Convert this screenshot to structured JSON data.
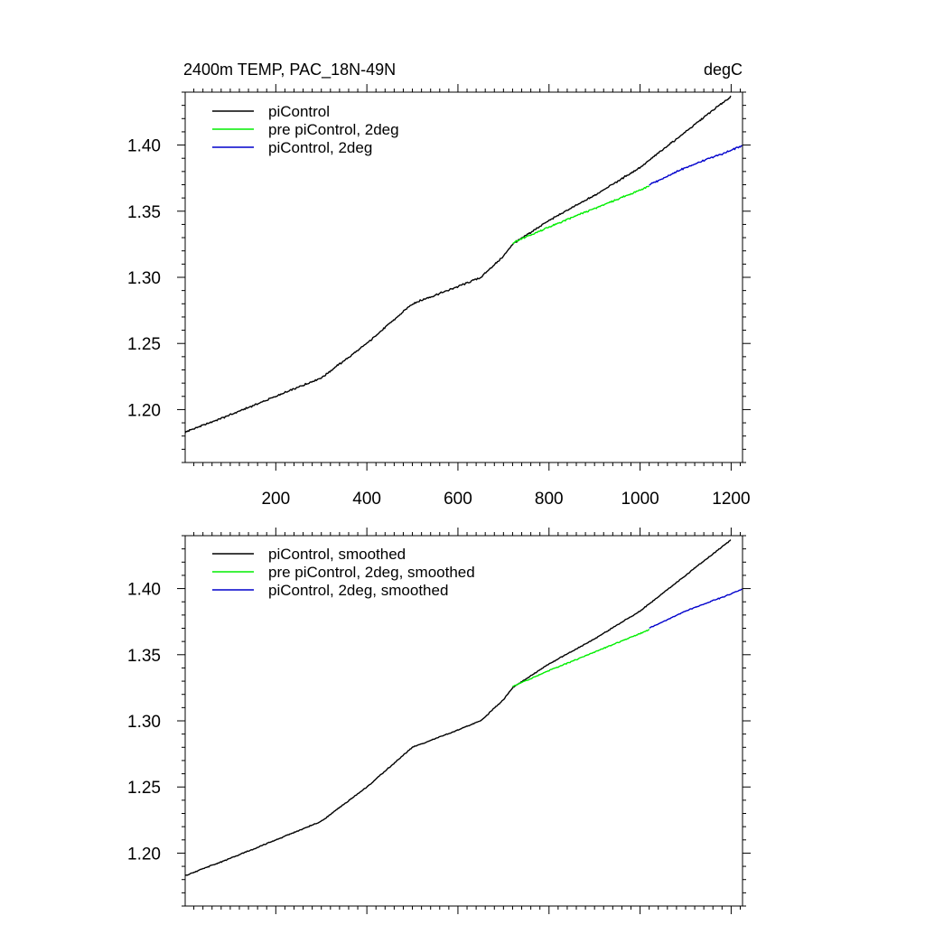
{
  "figure_title": "2400m TEMP, PAC_18N-49N",
  "figure_units": "degC",
  "colors": {
    "piControl": "#000000",
    "pre_piControl_2deg": "#00ee00",
    "piControl_2deg": "#0000cc"
  },
  "chart_data": [
    {
      "type": "line",
      "title": "2400m TEMP, PAC_18N-49N",
      "units": "degC",
      "xlim": [
        1,
        1225
      ],
      "ylim": [
        1.16,
        1.44
      ],
      "x_ticks": [
        200,
        400,
        600,
        800,
        1000,
        1200
      ],
      "x_tick_labels": [
        "200",
        "400",
        "600",
        "800",
        "1000",
        "1200"
      ],
      "y_ticks": [
        1.2,
        1.25,
        1.3,
        1.35,
        1.4
      ],
      "y_tick_labels": [
        "1.20",
        "1.25",
        "1.30",
        "1.35",
        "1.40"
      ],
      "legend_position": "top-left",
      "series": [
        {
          "name": "piControl",
          "color": "#000000",
          "x": [
            1,
            100,
            200,
            300,
            400,
            500,
            600,
            650,
            700,
            720,
            800,
            900,
            1000,
            1100,
            1200
          ],
          "y": [
            1.183,
            1.196,
            1.21,
            1.224,
            1.25,
            1.28,
            1.293,
            1.3,
            1.316,
            1.325,
            1.343,
            1.362,
            1.383,
            1.41,
            1.437
          ]
        },
        {
          "name": "pre piControl, 2deg",
          "color": "#00ee00",
          "x": [
            720,
            800,
            900,
            1000,
            1020
          ],
          "y": [
            1.326,
            1.338,
            1.352,
            1.366,
            1.369
          ]
        },
        {
          "name": "piControl, 2deg",
          "color": "#0000cc",
          "x": [
            1020,
            1100,
            1200,
            1225
          ],
          "y": [
            1.37,
            1.383,
            1.396,
            1.4
          ]
        }
      ]
    },
    {
      "type": "line",
      "title": "",
      "xlim": [
        1,
        1225
      ],
      "ylim": [
        1.16,
        1.44
      ],
      "x_ticks": [
        200,
        400,
        600,
        800,
        1000,
        1200
      ],
      "y_ticks": [
        1.2,
        1.25,
        1.3,
        1.35,
        1.4
      ],
      "y_tick_labels": [
        "1.20",
        "1.25",
        "1.30",
        "1.35",
        "1.40"
      ],
      "legend_position": "top-left",
      "series": [
        {
          "name": "piControl, smoothed",
          "color": "#000000",
          "x": [
            1,
            100,
            200,
            300,
            400,
            500,
            600,
            650,
            700,
            720,
            800,
            900,
            1000,
            1100,
            1200
          ],
          "y": [
            1.183,
            1.196,
            1.21,
            1.224,
            1.25,
            1.28,
            1.293,
            1.3,
            1.316,
            1.325,
            1.343,
            1.362,
            1.383,
            1.41,
            1.437
          ]
        },
        {
          "name": "pre piControl, 2deg, smoothed",
          "color": "#00ee00",
          "x": [
            720,
            800,
            900,
            1000,
            1020
          ],
          "y": [
            1.326,
            1.338,
            1.352,
            1.366,
            1.369
          ]
        },
        {
          "name": "piControl, 2deg, smoothed",
          "color": "#0000cc",
          "x": [
            1020,
            1100,
            1200,
            1225
          ],
          "y": [
            1.37,
            1.383,
            1.396,
            1.4
          ]
        }
      ]
    }
  ]
}
